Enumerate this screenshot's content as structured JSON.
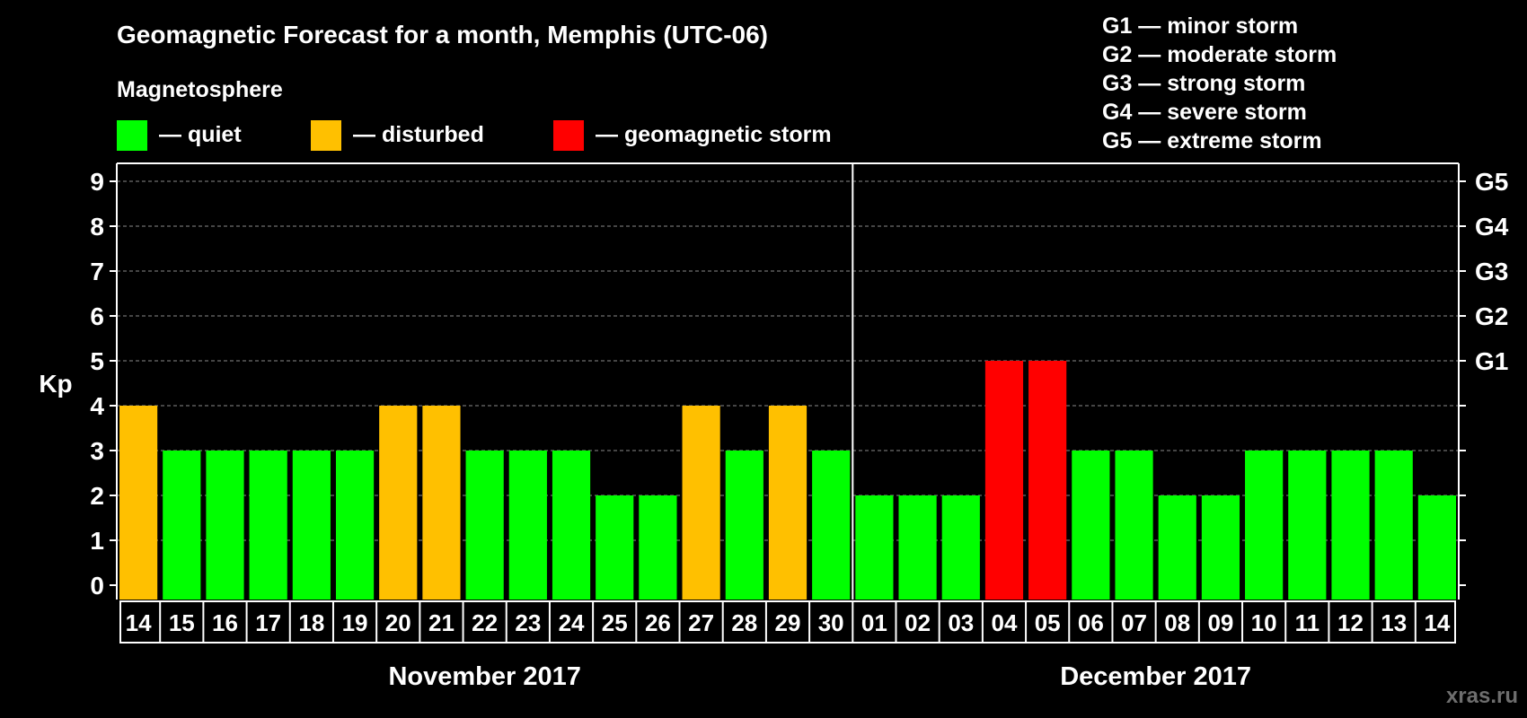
{
  "chart_data": {
    "type": "bar",
    "title": "Geomagnetic Forecast for a month, Memphis (UTC-06)",
    "legend_title": "Magnetosphere",
    "legend": [
      {
        "label": "— quiet",
        "color": "#00ff00"
      },
      {
        "label": "— disturbed",
        "color": "#ffc000"
      },
      {
        "label": "— geomagnetic storm",
        "color": "#ff0000"
      }
    ],
    "storm_scale": [
      "G1 — minor storm",
      "G2 — moderate storm",
      "G3 — strong storm",
      "G4 — severe storm",
      "G5 — extreme storm"
    ],
    "ylabel": "Kp",
    "ylim": [
      0,
      9
    ],
    "y_ticks": [
      "0",
      "1",
      "2",
      "3",
      "4",
      "5",
      "6",
      "7",
      "8",
      "9"
    ],
    "right_axis_labels": [
      {
        "kp": 5,
        "label": "G1"
      },
      {
        "kp": 6,
        "label": "G2"
      },
      {
        "kp": 7,
        "label": "G3"
      },
      {
        "kp": 8,
        "label": "G4"
      },
      {
        "kp": 9,
        "label": "G5"
      }
    ],
    "categories": [
      "14",
      "15",
      "16",
      "17",
      "18",
      "19",
      "20",
      "21",
      "22",
      "23",
      "24",
      "25",
      "26",
      "27",
      "28",
      "29",
      "30",
      "01",
      "02",
      "03",
      "04",
      "05",
      "06",
      "07",
      "08",
      "09",
      "10",
      "11",
      "12",
      "13",
      "14"
    ],
    "values": [
      4,
      3,
      3,
      3,
      3,
      3,
      4,
      4,
      3,
      3,
      3,
      2,
      2,
      4,
      3,
      4,
      3,
      2,
      2,
      2,
      5,
      5,
      3,
      3,
      2,
      2,
      3,
      3,
      3,
      3,
      2
    ],
    "months": [
      {
        "label": "November 2017",
        "start": 0,
        "end": 16
      },
      {
        "label": "December 2017",
        "start": 17,
        "end": 30
      }
    ],
    "grid": true,
    "colors": {
      "quiet": "#00ff00",
      "disturbed": "#ffc000",
      "storm": "#ff0000"
    }
  },
  "watermark": "xras.ru"
}
